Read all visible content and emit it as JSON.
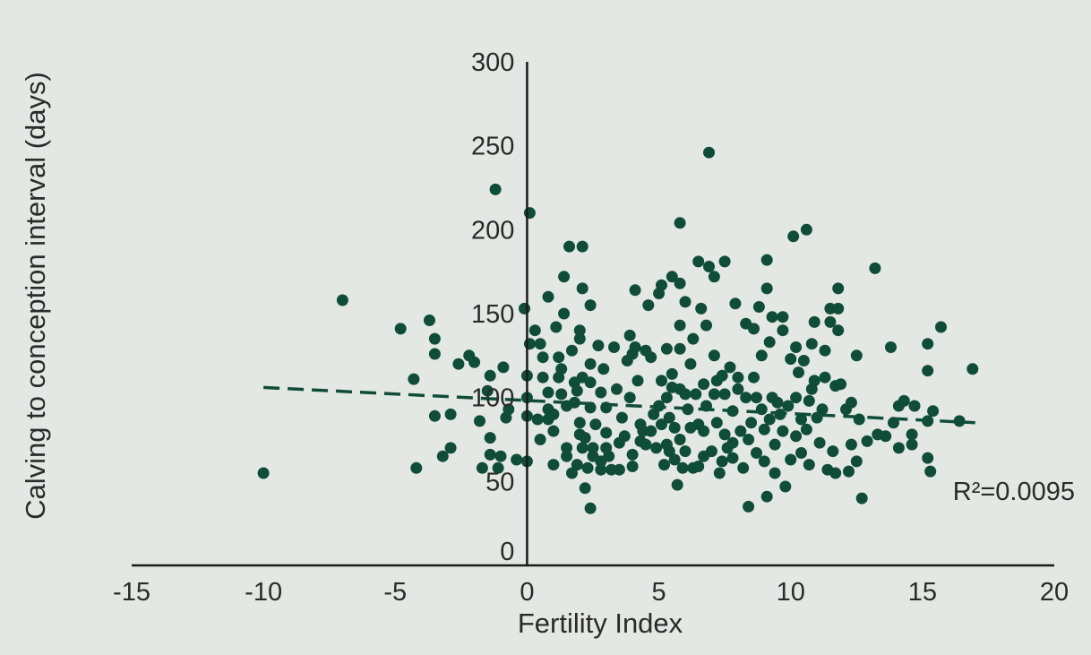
{
  "chart_data": {
    "type": "scatter",
    "title": "",
    "xlabel": "Fertility Index",
    "ylabel": "Calving to conception interval (days)",
    "xlim": [
      -15,
      20
    ],
    "ylim": [
      0,
      300
    ],
    "x_ticks": [
      -15,
      -10,
      -5,
      0,
      5,
      10,
      15,
      20
    ],
    "y_ticks": [
      0,
      50,
      100,
      150,
      200,
      250,
      300
    ],
    "x_tick_labels": [
      "-15",
      "-10",
      "-5",
      "0",
      "5",
      "10",
      "15",
      "20"
    ],
    "y_tick_labels": [
      "0",
      "50",
      "100",
      "150",
      "200",
      "250",
      "300"
    ],
    "grid": false,
    "marker_color": "#0f4d38",
    "trendline": {
      "x": [
        -10,
        17
      ],
      "y": [
        106,
        85
      ],
      "style": "dashed",
      "color": "#0f4d38"
    },
    "annotation": "R²=0.0095",
    "points": [
      [
        -10,
        55
      ],
      [
        -7,
        158
      ],
      [
        -4.8,
        141
      ],
      [
        -4.2,
        58
      ],
      [
        -4.3,
        111
      ],
      [
        -3.7,
        146
      ],
      [
        -3.5,
        135
      ],
      [
        -3.5,
        126
      ],
      [
        -3.5,
        89
      ],
      [
        -3.2,
        65
      ],
      [
        -2.9,
        70
      ],
      [
        -2.9,
        90
      ],
      [
        -2.6,
        120
      ],
      [
        -2.2,
        125
      ],
      [
        -2.0,
        121
      ],
      [
        -1.8,
        86
      ],
      [
        -1.7,
        58
      ],
      [
        -1.5,
        104
      ],
      [
        -1.4,
        113
      ],
      [
        -1.4,
        66
      ],
      [
        -1.4,
        76
      ],
      [
        -1.2,
        224
      ],
      [
        -1.1,
        58
      ],
      [
        -1.0,
        65
      ],
      [
        -0.9,
        118
      ],
      [
        -0.8,
        88
      ],
      [
        -0.7,
        93
      ],
      [
        -0.4,
        63
      ],
      [
        -0.1,
        153
      ],
      [
        0.0,
        113
      ],
      [
        0.0,
        100
      ],
      [
        0.0,
        89
      ],
      [
        0.0,
        62
      ],
      [
        0.1,
        132
      ],
      [
        0.1,
        210
      ],
      [
        0.3,
        140
      ],
      [
        0.4,
        87
      ],
      [
        0.5,
        75
      ],
      [
        0.5,
        132
      ],
      [
        0.6,
        112
      ],
      [
        0.6,
        124
      ],
      [
        0.8,
        160
      ],
      [
        0.8,
        103
      ],
      [
        0.8,
        87
      ],
      [
        0.8,
        93
      ],
      [
        1.0,
        90
      ],
      [
        1.0,
        60
      ],
      [
        1.0,
        80
      ],
      [
        1.1,
        142
      ],
      [
        1.2,
        124
      ],
      [
        1.2,
        112
      ],
      [
        1.3,
        102
      ],
      [
        1.3,
        117
      ],
      [
        1.4,
        150
      ],
      [
        1.4,
        172
      ],
      [
        1.5,
        95
      ],
      [
        1.5,
        70
      ],
      [
        1.5,
        65
      ],
      [
        1.6,
        190
      ],
      [
        1.7,
        55
      ],
      [
        1.7,
        128
      ],
      [
        1.8,
        109
      ],
      [
        1.8,
        97
      ],
      [
        1.9,
        60
      ],
      [
        1.9,
        104
      ],
      [
        2.0,
        78
      ],
      [
        2.0,
        140
      ],
      [
        2.0,
        135
      ],
      [
        2.0,
        85
      ],
      [
        2.1,
        70
      ],
      [
        2.1,
        190
      ],
      [
        2.1,
        165
      ],
      [
        2.1,
        112
      ],
      [
        2.2,
        46
      ],
      [
        2.2,
        76
      ],
      [
        2.3,
        58
      ],
      [
        2.4,
        155
      ],
      [
        2.4,
        109
      ],
      [
        2.4,
        94
      ],
      [
        2.4,
        120
      ],
      [
        2.4,
        34
      ],
      [
        2.5,
        65
      ],
      [
        2.5,
        70
      ],
      [
        2.6,
        84
      ],
      [
        2.7,
        131
      ],
      [
        2.8,
        103
      ],
      [
        2.8,
        62
      ],
      [
        2.8,
        57
      ],
      [
        2.9,
        117
      ],
      [
        3.0,
        94
      ],
      [
        3.0,
        79
      ],
      [
        3.0,
        70
      ],
      [
        3.1,
        65
      ],
      [
        3.2,
        57
      ],
      [
        3.3,
        130
      ],
      [
        3.4,
        105
      ],
      [
        3.5,
        73
      ],
      [
        3.5,
        57
      ],
      [
        3.6,
        88
      ],
      [
        3.7,
        77
      ],
      [
        3.8,
        122
      ],
      [
        3.9,
        137
      ],
      [
        3.9,
        100
      ],
      [
        4.0,
        126
      ],
      [
        4.0,
        66
      ],
      [
        4.0,
        59
      ],
      [
        4.1,
        164
      ],
      [
        4.1,
        130
      ],
      [
        4.2,
        110
      ],
      [
        4.3,
        84
      ],
      [
        4.3,
        74
      ],
      [
        4.4,
        80
      ],
      [
        4.5,
        128
      ],
      [
        4.5,
        72
      ],
      [
        4.6,
        155
      ],
      [
        4.7,
        124
      ],
      [
        4.7,
        80
      ],
      [
        4.8,
        90
      ],
      [
        4.9,
        70
      ],
      [
        5.0,
        162
      ],
      [
        5.0,
        95
      ],
      [
        5.1,
        84
      ],
      [
        5.1,
        110
      ],
      [
        5.1,
        167
      ],
      [
        5.2,
        60
      ],
      [
        5.3,
        129
      ],
      [
        5.3,
        100
      ],
      [
        5.3,
        72
      ],
      [
        5.4,
        68
      ],
      [
        5.4,
        88
      ],
      [
        5.5,
        172
      ],
      [
        5.5,
        114
      ],
      [
        5.5,
        106
      ],
      [
        5.6,
        82
      ],
      [
        5.6,
        63
      ],
      [
        5.7,
        48
      ],
      [
        5.8,
        168
      ],
      [
        5.8,
        143
      ],
      [
        5.8,
        129
      ],
      [
        5.8,
        105
      ],
      [
        5.8,
        75
      ],
      [
        5.8,
        204
      ],
      [
        5.9,
        58
      ],
      [
        6.0,
        157
      ],
      [
        6.0,
        102
      ],
      [
        6.0,
        68
      ],
      [
        6.1,
        93
      ],
      [
        6.2,
        120
      ],
      [
        6.2,
        82
      ],
      [
        6.3,
        135
      ],
      [
        6.3,
        58
      ],
      [
        6.4,
        102
      ],
      [
        6.5,
        181
      ],
      [
        6.5,
        84
      ],
      [
        6.5,
        59
      ],
      [
        6.6,
        153
      ],
      [
        6.7,
        108
      ],
      [
        6.7,
        80
      ],
      [
        6.7,
        65
      ],
      [
        6.8,
        143
      ],
      [
        6.8,
        95
      ],
      [
        6.9,
        246
      ],
      [
        6.9,
        178
      ],
      [
        7.0,
        68
      ],
      [
        7.1,
        172
      ],
      [
        7.1,
        125
      ],
      [
        7.1,
        102
      ],
      [
        7.2,
        85
      ],
      [
        7.2,
        110
      ],
      [
        7.3,
        55
      ],
      [
        7.4,
        62
      ],
      [
        7.4,
        113
      ],
      [
        7.5,
        181
      ],
      [
        7.5,
        102
      ],
      [
        7.5,
        78
      ],
      [
        7.6,
        70
      ],
      [
        7.7,
        118
      ],
      [
        7.8,
        92
      ],
      [
        7.8,
        73
      ],
      [
        7.8,
        64
      ],
      [
        7.9,
        156
      ],
      [
        8.0,
        112
      ],
      [
        8.0,
        105
      ],
      [
        8.1,
        80
      ],
      [
        8.2,
        58
      ],
      [
        8.3,
        144
      ],
      [
        8.3,
        100
      ],
      [
        8.4,
        35
      ],
      [
        8.4,
        75
      ],
      [
        8.5,
        85
      ],
      [
        8.6,
        112
      ],
      [
        8.6,
        141
      ],
      [
        8.7,
        100
      ],
      [
        8.7,
        67
      ],
      [
        8.8,
        154
      ],
      [
        8.9,
        125
      ],
      [
        8.9,
        93
      ],
      [
        9.0,
        81
      ],
      [
        9.0,
        62
      ],
      [
        9.1,
        182
      ],
      [
        9.1,
        165
      ],
      [
        9.1,
        41
      ],
      [
        9.2,
        133
      ],
      [
        9.2,
        87
      ],
      [
        9.3,
        148
      ],
      [
        9.3,
        100
      ],
      [
        9.4,
        72
      ],
      [
        9.4,
        55
      ],
      [
        9.5,
        97
      ],
      [
        9.6,
        90
      ],
      [
        9.7,
        140
      ],
      [
        9.7,
        148
      ],
      [
        9.7,
        80
      ],
      [
        9.8,
        47
      ],
      [
        9.9,
        95
      ],
      [
        10.0,
        123
      ],
      [
        10.0,
        63
      ],
      [
        10.1,
        196
      ],
      [
        10.2,
        100
      ],
      [
        10.2,
        130
      ],
      [
        10.2,
        77
      ],
      [
        10.3,
        115
      ],
      [
        10.4,
        87
      ],
      [
        10.4,
        67
      ],
      [
        10.5,
        122
      ],
      [
        10.6,
        81
      ],
      [
        10.6,
        200
      ],
      [
        10.7,
        98
      ],
      [
        10.7,
        60
      ],
      [
        10.8,
        132
      ],
      [
        10.8,
        105
      ],
      [
        10.9,
        145
      ],
      [
        10.9,
        110
      ],
      [
        11.0,
        88
      ],
      [
        11.1,
        73
      ],
      [
        11.2,
        93
      ],
      [
        11.3,
        128
      ],
      [
        11.3,
        112
      ],
      [
        11.4,
        57
      ],
      [
        11.5,
        153
      ],
      [
        11.5,
        145
      ],
      [
        11.6,
        68
      ],
      [
        11.7,
        55
      ],
      [
        11.7,
        107
      ],
      [
        11.8,
        165
      ],
      [
        11.8,
        153
      ],
      [
        11.8,
        140
      ],
      [
        11.9,
        108
      ],
      [
        12.1,
        93
      ],
      [
        12.2,
        56
      ],
      [
        12.3,
        97
      ],
      [
        12.3,
        72
      ],
      [
        12.5,
        125
      ],
      [
        12.5,
        62
      ],
      [
        12.6,
        87
      ],
      [
        12.7,
        40
      ],
      [
        12.9,
        74
      ],
      [
        13.2,
        177
      ],
      [
        13.3,
        78
      ],
      [
        13.6,
        77
      ],
      [
        13.8,
        130
      ],
      [
        13.9,
        85
      ],
      [
        14.1,
        95
      ],
      [
        14.1,
        70
      ],
      [
        14.3,
        98
      ],
      [
        14.6,
        72
      ],
      [
        14.6,
        78
      ],
      [
        14.7,
        95
      ],
      [
        15.2,
        132
      ],
      [
        15.2,
        116
      ],
      [
        15.2,
        86
      ],
      [
        15.2,
        64
      ],
      [
        15.3,
        56
      ],
      [
        15.4,
        92
      ],
      [
        15.7,
        142
      ],
      [
        16.4,
        86
      ],
      [
        16.9,
        117
      ]
    ]
  }
}
